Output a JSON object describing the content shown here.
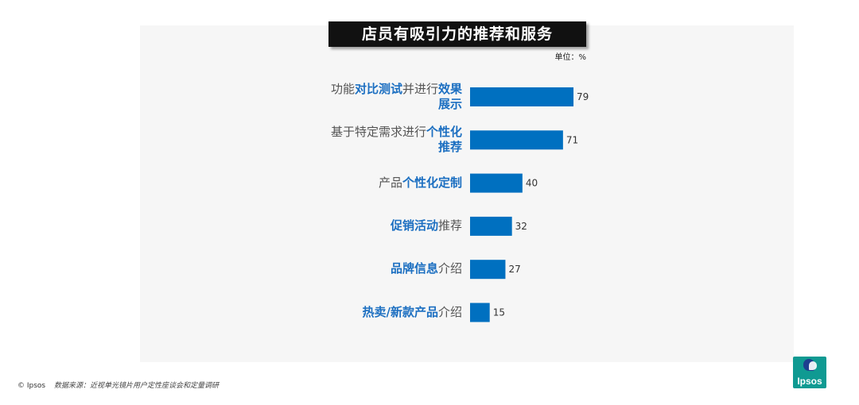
{
  "chart_data": {
    "type": "bar",
    "orientation": "horizontal",
    "title": "店员有吸引力的推荐和服务",
    "unit_label": "单位：%",
    "categories": [
      {
        "segments": [
          {
            "text": "功能",
            "bold": false
          },
          {
            "text": "对比测试",
            "bold": true
          },
          {
            "text": "并进行",
            "bold": false
          },
          {
            "text": "效果展示",
            "bold": true
          }
        ]
      },
      {
        "segments": [
          {
            "text": "基于特定需求进行",
            "bold": false
          },
          {
            "text": "个性化推荐",
            "bold": true
          }
        ]
      },
      {
        "segments": [
          {
            "text": "产品",
            "bold": false
          },
          {
            "text": "个性化定制",
            "bold": true
          }
        ]
      },
      {
        "segments": [
          {
            "text": "促销活动",
            "bold": true
          },
          {
            "text": "推荐",
            "bold": false
          }
        ]
      },
      {
        "segments": [
          {
            "text": "品牌信息",
            "bold": true
          },
          {
            "text": "介绍",
            "bold": false
          }
        ]
      },
      {
        "segments": [
          {
            "text": "热卖/新款产品",
            "bold": true
          },
          {
            "text": "介绍",
            "bold": false
          }
        ]
      }
    ],
    "values": [
      79,
      71,
      40,
      32,
      27,
      15
    ],
    "xlim": [
      0,
      100
    ],
    "bar_color": "#0070c0",
    "grid": false,
    "legend": "none"
  },
  "footer": {
    "copyright": "© Ipsos",
    "source": "数据来源：近视单光镜片用户定性座谈会和定量调研"
  },
  "logo": {
    "text": "Ipsos",
    "color": "#0f9a92"
  }
}
